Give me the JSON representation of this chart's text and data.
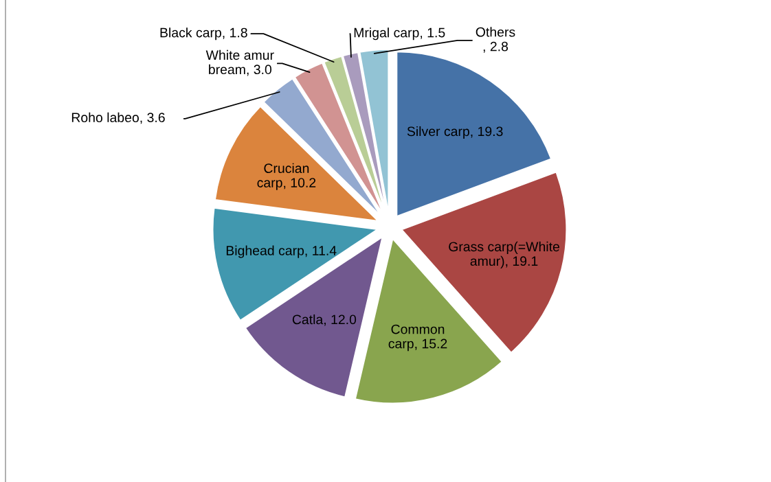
{
  "chart_data": {
    "type": "pie",
    "categories": [
      "Silver carp",
      "Grass carp(=White amur)",
      "Common carp",
      "Catla",
      "Bighead carp",
      "Crucian carp",
      "Roho labeo",
      "White amur bream",
      "Black carp",
      "Mrigal carp",
      "Others"
    ],
    "values": [
      19.3,
      19.1,
      15.2,
      12.0,
      11.4,
      10.2,
      3.6,
      3.0,
      1.8,
      1.5,
      2.8
    ],
    "colors": [
      "#4572a7",
      "#aa4643",
      "#89a54e",
      "#71588f",
      "#4198af",
      "#db843d",
      "#93a9cf",
      "#d19392",
      "#b9cd96",
      "#a99bbd",
      "#92c3d4"
    ],
    "value_labels": [
      ", 19.3",
      ", 19.1",
      ", 15.2",
      ", 12.0",
      ", 11.4",
      ", 10.2",
      ", 3.6",
      ", 3.0",
      ", 1.8",
      ", 1.5",
      ", 2.8"
    ]
  }
}
